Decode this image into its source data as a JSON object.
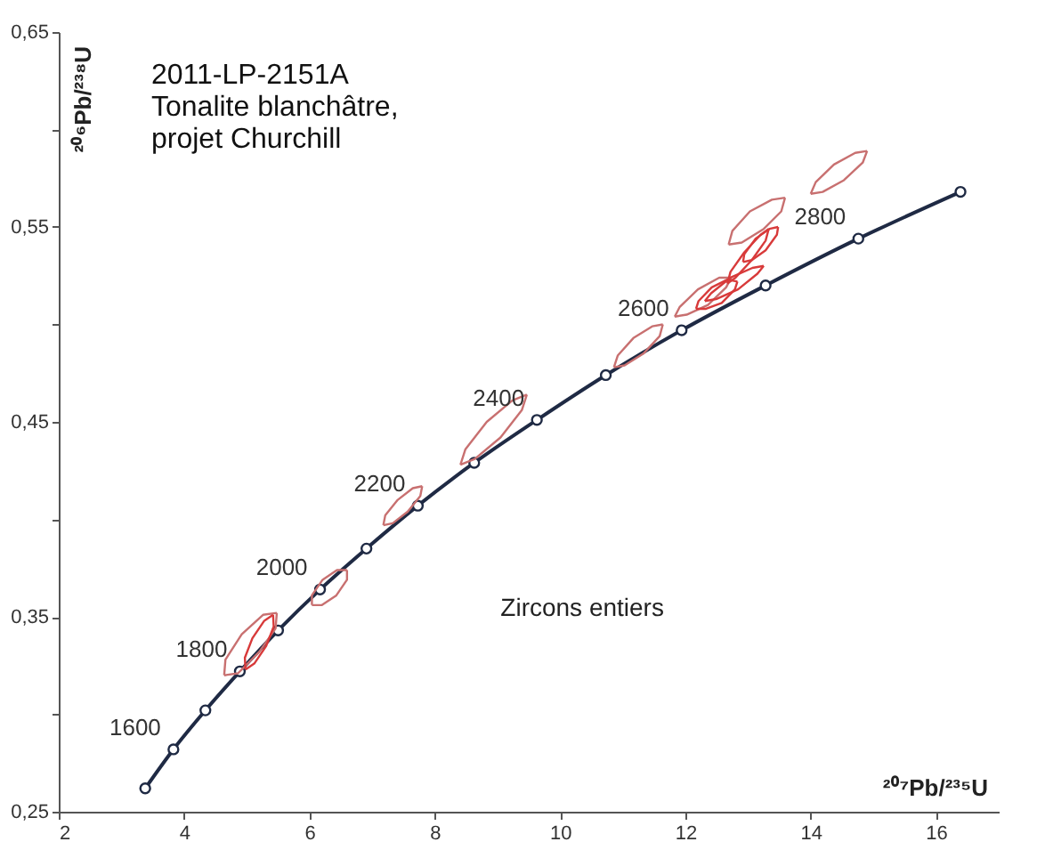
{
  "chart_data": {
    "type": "line",
    "title": "2011-LP-2151A\nTonalite blanchâtre,\nprojet Churchill",
    "xlabel": "²⁰⁷Pb/²³⁵U",
    "ylabel": "²⁰⁶Pb/²³⁸U",
    "xlim": [
      2,
      17
    ],
    "ylim": [
      0.25,
      0.65
    ],
    "xticks": [
      2,
      4,
      6,
      8,
      10,
      12,
      14,
      16
    ],
    "yticks": [
      {
        "value": 0.25,
        "label": "0,25"
      },
      {
        "value": 0.3,
        "label": null
      },
      {
        "value": 0.35,
        "label": "0,35"
      },
      {
        "value": 0.4,
        "label": null
      },
      {
        "value": 0.45,
        "label": "0,45"
      },
      {
        "value": 0.5,
        "label": null
      },
      {
        "value": 0.55,
        "label": "0,55"
      },
      {
        "value": 0.6,
        "label": null
      },
      {
        "value": 0.65,
        "label": "0,65"
      }
    ],
    "grid": false,
    "series": [
      {
        "color": "#1f2a44",
        "marker": "circle",
        "x": [
          3.38,
          3.83,
          4.34,
          4.89,
          5.5,
          6.17,
          6.91,
          7.73,
          8.63,
          9.63,
          10.73,
          11.94,
          13.28,
          14.76,
          16.39
        ],
        "values": [
          0.262,
          0.282,
          0.302,
          0.322,
          0.343,
          0.364,
          0.385,
          0.407,
          0.429,
          0.451,
          0.474,
          0.497,
          0.52,
          0.544,
          0.568
        ]
      },
      {
        "color": "#c87070",
        "marker": "none",
        "x": [
          14.0,
          14.19,
          14.53,
          14.83,
          14.9
        ],
        "values": [
          0.567,
          0.568,
          0.574,
          0.583,
          0.589
        ]
      },
      {
        "color": "#c87070",
        "marker": "none",
        "x": [
          14.0,
          14.08,
          14.37,
          14.71,
          14.9
        ],
        "values": [
          0.567,
          0.573,
          0.582,
          0.588,
          0.589
        ]
      },
      {
        "color": "#c87070",
        "marker": "none",
        "x": [
          12.69,
          12.9,
          13.25,
          13.53,
          13.59
        ],
        "values": [
          0.541,
          0.542,
          0.549,
          0.558,
          0.565
        ]
      },
      {
        "color": "#c87070",
        "marker": "none",
        "x": [
          12.69,
          12.75,
          13.03,
          13.38,
          13.59
        ],
        "values": [
          0.541,
          0.548,
          0.558,
          0.564,
          0.565
        ]
      },
      {
        "color": "#c87070",
        "marker": "none",
        "x": [
          11.83,
          12.02,
          12.36,
          12.65,
          12.73
        ],
        "values": [
          0.504,
          0.505,
          0.51,
          0.519,
          0.524
        ]
      },
      {
        "color": "#c87070",
        "marker": "none",
        "x": [
          11.83,
          11.91,
          12.2,
          12.54,
          12.73
        ],
        "values": [
          0.504,
          0.509,
          0.518,
          0.524,
          0.524
        ]
      },
      {
        "color": "#d83a3a",
        "marker": "none",
        "x": [
          12.67,
          12.8,
          13.06,
          13.28,
          13.33
        ],
        "values": [
          0.521,
          0.524,
          0.533,
          0.543,
          0.549
        ]
      },
      {
        "color": "#d83a3a",
        "marker": "none",
        "x": [
          12.67,
          12.72,
          12.94,
          13.2,
          13.33
        ],
        "values": [
          0.521,
          0.527,
          0.537,
          0.546,
          0.549
        ]
      },
      {
        "color": "#d83a3a",
        "marker": "none",
        "x": [
          12.31,
          12.49,
          12.84,
          13.15,
          13.25
        ],
        "values": [
          0.512,
          0.513,
          0.518,
          0.526,
          0.53
        ]
      },
      {
        "color": "#d83a3a",
        "marker": "none",
        "x": [
          12.31,
          12.41,
          12.72,
          13.07,
          13.25
        ],
        "values": [
          0.512,
          0.516,
          0.524,
          0.529,
          0.53
        ]
      },
      {
        "color": "#d83a3a",
        "marker": "none",
        "x": [
          12.92,
          13.06,
          13.28,
          13.46,
          13.48
        ],
        "values": [
          0.532,
          0.533,
          0.538,
          0.546,
          0.55
        ]
      },
      {
        "color": "#d83a3a",
        "marker": "none",
        "x": [
          12.92,
          12.94,
          13.12,
          13.34,
          13.48
        ],
        "values": [
          0.532,
          0.536,
          0.544,
          0.549,
          0.55
        ]
      },
      {
        "color": "#d83a3a",
        "marker": "none",
        "x": [
          12.17,
          12.33,
          12.58,
          12.79,
          12.83
        ],
        "values": [
          0.508,
          0.508,
          0.511,
          0.518,
          0.522
        ]
      },
      {
        "color": "#d83a3a",
        "marker": "none",
        "x": [
          12.17,
          12.21,
          12.42,
          12.67,
          12.83
        ],
        "values": [
          0.508,
          0.512,
          0.519,
          0.523,
          0.522
        ]
      },
      {
        "color": "#c87070",
        "marker": "none",
        "x": [
          10.86,
          11.03,
          11.33,
          11.59,
          11.64
        ],
        "values": [
          0.478,
          0.479,
          0.485,
          0.494,
          0.5
        ]
      },
      {
        "color": "#c87070",
        "marker": "none",
        "x": [
          10.86,
          10.92,
          11.17,
          11.47,
          11.64
        ],
        "values": [
          0.478,
          0.484,
          0.493,
          0.499,
          0.5
        ]
      },
      {
        "color": "#c87070",
        "marker": "none",
        "x": [
          8.41,
          8.64,
          9.05,
          9.39,
          9.47
        ],
        "values": [
          0.428,
          0.431,
          0.442,
          0.456,
          0.464
        ]
      },
      {
        "color": "#c87070",
        "marker": "none",
        "x": [
          8.41,
          8.49,
          8.83,
          9.24,
          9.47
        ],
        "values": [
          0.428,
          0.436,
          0.45,
          0.461,
          0.464
        ]
      },
      {
        "color": "#c87070",
        "marker": "none",
        "x": [
          7.18,
          7.33,
          7.57,
          7.77,
          7.8
        ],
        "values": [
          0.397,
          0.398,
          0.404,
          0.412,
          0.417
        ]
      },
      {
        "color": "#c87070",
        "marker": "none",
        "x": [
          7.18,
          7.21,
          7.41,
          7.65,
          7.8
        ],
        "values": [
          0.397,
          0.402,
          0.41,
          0.416,
          0.417
        ]
      },
      {
        "color": "#c87070",
        "marker": "none",
        "x": [
          6.04,
          6.2,
          6.43,
          6.6,
          6.6
        ],
        "values": [
          0.356,
          0.356,
          0.361,
          0.369,
          0.374
        ]
      },
      {
        "color": "#c87070",
        "marker": "none",
        "x": [
          6.04,
          6.04,
          6.21,
          6.44,
          6.6
        ],
        "values": [
          0.356,
          0.361,
          0.369,
          0.374,
          0.374
        ]
      },
      {
        "color": "#c87070",
        "marker": "none",
        "x": [
          4.64,
          4.86,
          5.2,
          5.46,
          5.48
        ],
        "values": [
          0.32,
          0.321,
          0.332,
          0.344,
          0.352
        ]
      },
      {
        "color": "#c87070",
        "marker": "none",
        "x": [
          4.64,
          4.66,
          4.92,
          5.26,
          5.48
        ],
        "values": [
          0.32,
          0.328,
          0.341,
          0.351,
          0.352
        ]
      },
      {
        "color": "#d83a3a",
        "marker": "none",
        "x": [
          4.98,
          5.12,
          5.31,
          5.43,
          5.42
        ],
        "values": [
          0.323,
          0.326,
          0.335,
          0.345,
          0.351
        ]
      },
      {
        "color": "#d83a3a",
        "marker": "none",
        "x": [
          4.98,
          4.97,
          5.09,
          5.28,
          5.42
        ],
        "values": [
          0.323,
          0.329,
          0.339,
          0.348,
          0.351
        ]
      }
    ],
    "annotations": [
      {
        "text": "1600",
        "x": 3.83,
        "y": 0.282
      },
      {
        "text": "1800",
        "x": 4.89,
        "y": 0.322
      },
      {
        "text": "2000",
        "x": 6.17,
        "y": 0.364
      },
      {
        "text": "2200",
        "x": 7.73,
        "y": 0.407
      },
      {
        "text": "2400",
        "x": 9.63,
        "y": 0.451
      },
      {
        "text": "2600",
        "x": 11.94,
        "y": 0.497
      },
      {
        "text": "2800",
        "x": 14.76,
        "y": 0.544
      },
      "Zircons entiers"
    ]
  }
}
